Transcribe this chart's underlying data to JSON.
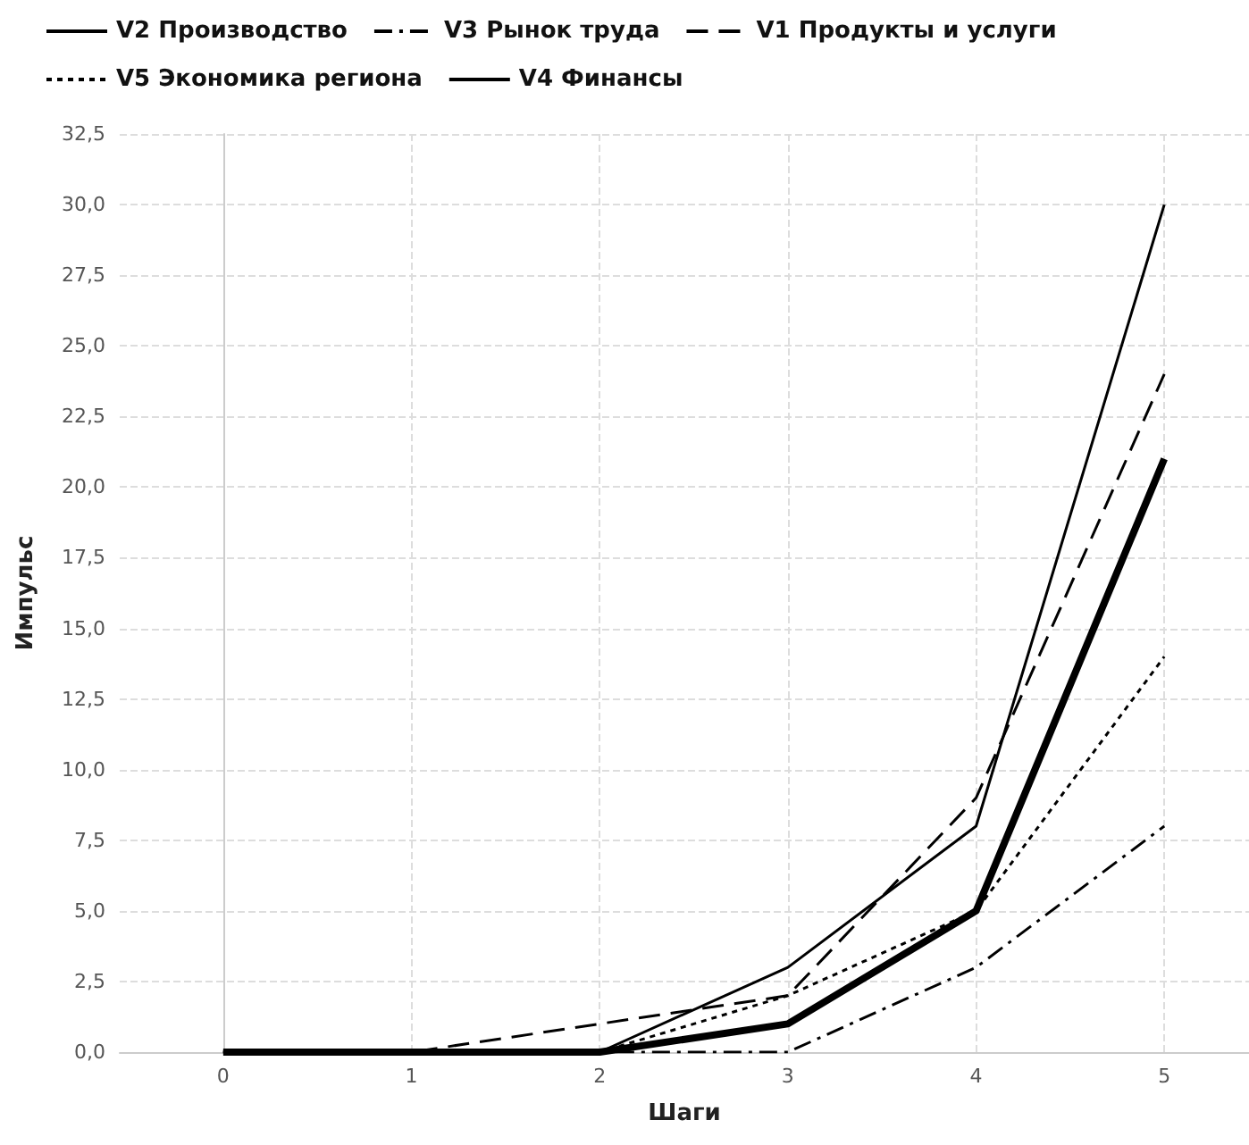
{
  "chart_data": {
    "type": "line",
    "xlabel": "Шаги",
    "ylabel": "Импульс",
    "x": [
      0,
      1,
      2,
      3,
      4,
      5
    ],
    "series": [
      {
        "name": "V2 Производство",
        "color": "#000000",
        "values": [
          0,
          0,
          0,
          3,
          8,
          30
        ],
        "line_style": "solid"
      },
      {
        "name": "V3 Рынок труда",
        "color": "#000000",
        "values": [
          0,
          0,
          0,
          0,
          3,
          8
        ],
        "line_style": "dashdot"
      },
      {
        "name": "V1 Продукты и услуги",
        "color": "#000000",
        "values": [
          0,
          0,
          1,
          2,
          9,
          24
        ],
        "line_style": "dashed"
      },
      {
        "name": "V5 Экономика региона",
        "color": "#000000",
        "values": [
          0,
          0,
          0,
          2,
          5,
          14
        ],
        "line_style": "dotted"
      },
      {
        "name": "V4 Финансы",
        "color": "#000000",
        "values": [
          0,
          0,
          0,
          1,
          5,
          21
        ],
        "line_style": "solid"
      }
    ],
    "xlim": [
      -0.55,
      5.45
    ],
    "xticks": [
      0,
      1,
      2,
      3,
      4,
      5
    ],
    "ylim": [
      0,
      32.5
    ],
    "yticks": [
      {
        "value": 0,
        "label": "0,0"
      },
      {
        "value": 2.5,
        "label": "2,5"
      },
      {
        "value": 5,
        "label": "5,0"
      },
      {
        "value": 7.5,
        "label": "7,5"
      },
      {
        "value": 10,
        "label": "10,0"
      },
      {
        "value": 12.5,
        "label": "12,5"
      },
      {
        "value": 15,
        "label": "15,0"
      },
      {
        "value": 17.5,
        "label": "17,5"
      },
      {
        "value": 20,
        "label": "20,0"
      },
      {
        "value": 22.5,
        "label": "22,5"
      },
      {
        "value": 25,
        "label": "25,0"
      },
      {
        "value": 27.5,
        "label": "27,5"
      },
      {
        "value": 30,
        "label": "30,0"
      },
      {
        "value": 32.5,
        "label": "32,5"
      }
    ],
    "grid": true,
    "legend": "top",
    "marker": "none"
  }
}
